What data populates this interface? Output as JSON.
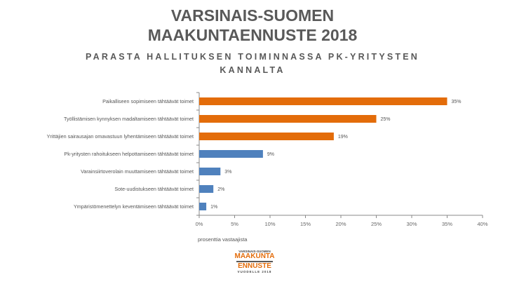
{
  "header": {
    "title_line1": "VARSINAIS-SUOMEN",
    "title_line2": "MAAKUNTAENNUSTE 2018"
  },
  "chart_data": {
    "type": "bar",
    "orientation": "horizontal",
    "title": "PARASTA HALLITUKSEN TOIMINNASSA PK-YRITYSTEN KANNALTA",
    "categories": [
      "Paikalliseen sopimiseen tähtäävät toimet",
      "Työllistämisen kynnyksen madaltamiseen tähtäävät toimet",
      "Yrittäjien sairausajan omavastuun lyhentämiseen tähtäävät toimet",
      "Pk-yritysten rahoitukseen helpottamiseen tähtäävät toimet",
      "Varainsiirtoverolain muuttamiseen tähtäävät toimet",
      "Sote-uudistukseen tähtäävät toimet",
      "Ympäristömenettelyn keventämiseen tähtäävät toimet"
    ],
    "values": [
      35,
      25,
      19,
      9,
      3,
      2,
      1
    ],
    "value_labels": [
      "35%",
      "25%",
      "19%",
      "9%",
      "3%",
      "2%",
      "1%"
    ],
    "colors": [
      "#E36C0A",
      "#E36C0A",
      "#E36C0A",
      "#4F81BD",
      "#4F81BD",
      "#4F81BD",
      "#4F81BD"
    ],
    "xlabel": "prosenttia vastaajista",
    "xlim": [
      0,
      40
    ],
    "xticks": [
      "0%",
      "5%",
      "10%",
      "15%",
      "20%",
      "25%",
      "30%",
      "35%",
      "40%"
    ],
    "grid": false
  },
  "logo": {
    "line1": "VARSINAIS-SUOMEN",
    "line2": "MAAKUNTA",
    "line3": "ENNUSTE",
    "line4": "VUODELLE 2018"
  }
}
